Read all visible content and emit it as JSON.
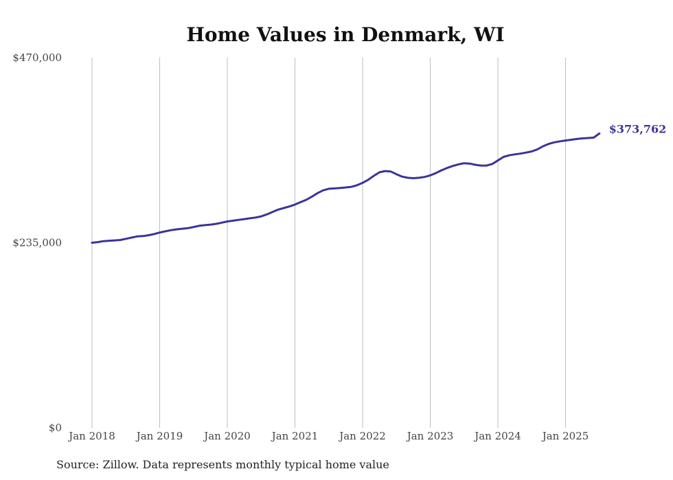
{
  "chart_data": {
    "type": "line",
    "title": "Home Values in Denmark, WI",
    "xlabel": "",
    "ylabel": "",
    "ylim": [
      0,
      470000
    ],
    "y_ticks": [
      0,
      235000,
      470000
    ],
    "y_tick_labels": [
      "$0",
      "$235,000",
      "$470,000"
    ],
    "x_ticks": [
      "2018-01",
      "2019-01",
      "2020-01",
      "2021-01",
      "2022-01",
      "2023-01",
      "2024-01",
      "2025-01"
    ],
    "x_tick_labels": [
      "Jan 2018",
      "Jan 2019",
      "Jan 2020",
      "Jan 2021",
      "Jan 2022",
      "Jan 2023",
      "Jan 2024",
      "Jan 2025"
    ],
    "xlim": [
      "2018-01",
      "2025-07"
    ],
    "grid": "vertical",
    "series_color": "#3b3399",
    "end_label": "$373,762",
    "series": [
      {
        "x": [
          "2018-01",
          "2018-02",
          "2018-03",
          "2018-04",
          "2018-05",
          "2018-06",
          "2018-07",
          "2018-08",
          "2018-09",
          "2018-10",
          "2018-11",
          "2018-12",
          "2019-01",
          "2019-02",
          "2019-03",
          "2019-04",
          "2019-05",
          "2019-06",
          "2019-07",
          "2019-08",
          "2019-09",
          "2019-10",
          "2019-11",
          "2019-12",
          "2020-01",
          "2020-02",
          "2020-03",
          "2020-04",
          "2020-05",
          "2020-06",
          "2020-07",
          "2020-08",
          "2020-09",
          "2020-10",
          "2020-11",
          "2020-12",
          "2021-01",
          "2021-02",
          "2021-03",
          "2021-04",
          "2021-05",
          "2021-06",
          "2021-07",
          "2021-08",
          "2021-09",
          "2021-10",
          "2021-11",
          "2021-12",
          "2022-01",
          "2022-02",
          "2022-03",
          "2022-04",
          "2022-05",
          "2022-06",
          "2022-07",
          "2022-08",
          "2022-09",
          "2022-10",
          "2022-11",
          "2022-12",
          "2023-01",
          "2023-02",
          "2023-03",
          "2023-04",
          "2023-05",
          "2023-06",
          "2023-07",
          "2023-08",
          "2023-09",
          "2023-10",
          "2023-11",
          "2023-12",
          "2024-01",
          "2024-02",
          "2024-03",
          "2024-04",
          "2024-05",
          "2024-06",
          "2024-07",
          "2024-08",
          "2024-09",
          "2024-10",
          "2024-11",
          "2024-12",
          "2025-01",
          "2025-02",
          "2025-03",
          "2025-04",
          "2025-05",
          "2025-06",
          "2025-07"
        ],
        "values": [
          235000,
          235800,
          237000,
          237500,
          238000,
          238500,
          240000,
          241500,
          243000,
          243500,
          244500,
          246000,
          248000,
          249500,
          251000,
          252000,
          252800,
          253500,
          255000,
          256500,
          257300,
          258000,
          259000,
          260500,
          262000,
          263000,
          264000,
          265000,
          266000,
          267000,
          268500,
          271000,
          274000,
          277000,
          279000,
          281000,
          283500,
          286500,
          289500,
          293500,
          298000,
          301500,
          303500,
          304000,
          304500,
          305200,
          306000,
          308000,
          311000,
          315000,
          320000,
          324500,
          326000,
          325500,
          322000,
          319000,
          317500,
          317000,
          317500,
          318500,
          320500,
          323500,
          327000,
          330000,
          332500,
          334500,
          336000,
          335500,
          334000,
          333000,
          333000,
          335000,
          339500,
          344000,
          346000,
          347200,
          348200,
          349500,
          351000,
          353500,
          357500,
          360500,
          362500,
          363800,
          364800,
          365800,
          366800,
          367500,
          368000,
          368500,
          373762
        ]
      }
    ]
  },
  "footer": {
    "source": "Source: Zillow. Data represents monthly typical home value"
  }
}
